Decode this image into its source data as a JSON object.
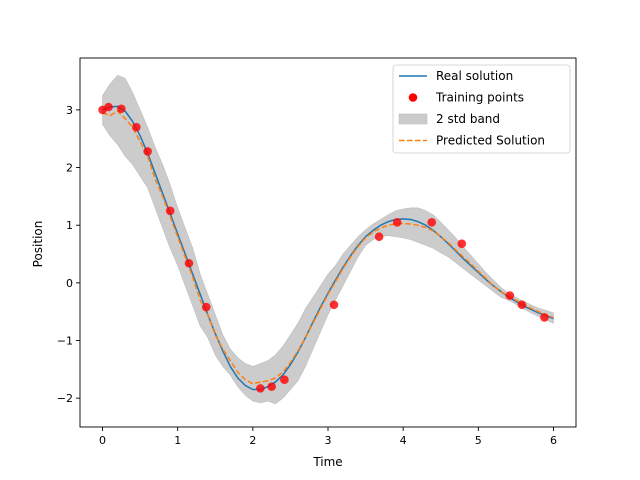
{
  "chart_data": {
    "type": "line",
    "title": "",
    "xlabel": "Time",
    "ylabel": "Position",
    "xlim": [
      -0.3,
      6.3
    ],
    "ylim": [
      -2.5,
      3.9
    ],
    "xticks": [
      0,
      1,
      2,
      3,
      4,
      5,
      6
    ],
    "yticks": [
      -2,
      -1,
      0,
      1,
      2,
      3
    ],
    "xtick_labels": [
      "0",
      "1",
      "2",
      "3",
      "4",
      "5",
      "6"
    ],
    "ytick_labels": [
      "−2",
      "−1",
      "0",
      "1",
      "2",
      "3"
    ],
    "grid": false,
    "legend_position": "top-right",
    "legend": [
      {
        "label": "Real solution",
        "kind": "line",
        "color": "#1f77b4"
      },
      {
        "label": "Training points",
        "kind": "marker",
        "color": "#ff0000"
      },
      {
        "label": "2 std band",
        "kind": "patch",
        "color": "#cccccc"
      },
      {
        "label": "Predicted Solution",
        "kind": "dashed",
        "color": "#ff7f0e"
      }
    ],
    "series": [
      {
        "name": "Real solution",
        "style": "solid",
        "color": "#1f77b4",
        "x": [
          0,
          0.1,
          0.2,
          0.3,
          0.4,
          0.5,
          0.6,
          0.7,
          0.8,
          0.9,
          1.0,
          1.1,
          1.2,
          1.3,
          1.4,
          1.5,
          1.6,
          1.7,
          1.8,
          1.9,
          2.0,
          2.1,
          2.2,
          2.3,
          2.4,
          2.5,
          2.6,
          2.7,
          2.8,
          2.9,
          3.0,
          3.1,
          3.2,
          3.3,
          3.4,
          3.5,
          3.6,
          3.7,
          3.8,
          3.9,
          4.0,
          4.1,
          4.2,
          4.3,
          4.4,
          4.5,
          4.6,
          4.7,
          4.8,
          4.9,
          5.0,
          5.1,
          5.2,
          5.3,
          5.4,
          5.5,
          5.6,
          5.7,
          5.8,
          5.9,
          6.0
        ],
        "y": [
          3.0,
          3.05,
          3.06,
          2.98,
          2.8,
          2.55,
          2.25,
          1.9,
          1.55,
          1.2,
          0.85,
          0.5,
          0.15,
          -0.2,
          -0.55,
          -0.88,
          -1.18,
          -1.45,
          -1.65,
          -1.78,
          -1.85,
          -1.85,
          -1.8,
          -1.72,
          -1.6,
          -1.42,
          -1.2,
          -0.95,
          -0.68,
          -0.42,
          -0.18,
          0.05,
          0.27,
          0.47,
          0.65,
          0.8,
          0.91,
          1.0,
          1.06,
          1.1,
          1.11,
          1.1,
          1.06,
          1.0,
          0.91,
          0.8,
          0.68,
          0.55,
          0.42,
          0.3,
          0.18,
          0.06,
          -0.05,
          -0.15,
          -0.24,
          -0.32,
          -0.4,
          -0.46,
          -0.52,
          -0.57,
          -0.62
        ]
      },
      {
        "name": "Predicted Solution",
        "style": "dashed",
        "color": "#ff7f0e",
        "x": [
          0,
          0.1,
          0.2,
          0.3,
          0.4,
          0.5,
          0.6,
          0.7,
          0.8,
          0.9,
          1.0,
          1.1,
          1.2,
          1.3,
          1.4,
          1.5,
          1.6,
          1.7,
          1.8,
          1.9,
          2.0,
          2.1,
          2.2,
          2.3,
          2.4,
          2.5,
          2.6,
          2.7,
          2.8,
          2.9,
          3.0,
          3.1,
          3.2,
          3.3,
          3.4,
          3.5,
          3.6,
          3.7,
          3.8,
          3.9,
          4.0,
          4.1,
          4.2,
          4.3,
          4.4,
          4.5,
          4.6,
          4.7,
          4.8,
          4.9,
          5.0,
          5.1,
          5.2,
          5.3,
          5.4,
          5.5,
          5.6,
          5.7,
          5.8,
          5.9,
          6.0
        ],
        "y": [
          2.95,
          2.9,
          2.98,
          2.85,
          2.7,
          2.45,
          2.2,
          1.8,
          1.5,
          1.15,
          0.8,
          0.45,
          0.1,
          -0.3,
          -0.55,
          -0.9,
          -1.15,
          -1.35,
          -1.55,
          -1.68,
          -1.75,
          -1.72,
          -1.7,
          -1.65,
          -1.55,
          -1.38,
          -1.18,
          -0.95,
          -0.7,
          -0.45,
          -0.2,
          0.02,
          0.25,
          0.45,
          0.63,
          0.78,
          0.88,
          0.95,
          1.0,
          1.02,
          1.03,
          1.02,
          1.0,
          0.96,
          0.9,
          0.8,
          0.7,
          0.57,
          0.45,
          0.33,
          0.2,
          0.08,
          -0.05,
          -0.15,
          -0.23,
          -0.3,
          -0.37,
          -0.44,
          -0.5,
          -0.56,
          -0.6
        ]
      }
    ],
    "band": {
      "name": "2 std band",
      "color": "#cccccc",
      "x": [
        0,
        0.1,
        0.2,
        0.3,
        0.4,
        0.5,
        0.6,
        0.7,
        0.8,
        0.9,
        1.0,
        1.1,
        1.2,
        1.3,
        1.4,
        1.5,
        1.6,
        1.7,
        1.8,
        1.9,
        2.0,
        2.1,
        2.2,
        2.3,
        2.4,
        2.5,
        2.6,
        2.7,
        2.8,
        2.9,
        3.0,
        3.1,
        3.2,
        3.3,
        3.4,
        3.5,
        3.6,
        3.7,
        3.8,
        3.9,
        4.0,
        4.1,
        4.2,
        4.3,
        4.4,
        4.5,
        4.6,
        4.7,
        4.8,
        4.9,
        5.0,
        5.1,
        5.2,
        5.3,
        5.4,
        5.5,
        5.6,
        5.7,
        5.8,
        5.9,
        6.0
      ],
      "upper": [
        3.25,
        3.45,
        3.6,
        3.55,
        3.3,
        3.0,
        2.7,
        2.35,
        2.05,
        1.7,
        1.3,
        0.95,
        0.6,
        0.15,
        -0.2,
        -0.55,
        -0.9,
        -1.15,
        -1.3,
        -1.4,
        -1.45,
        -1.4,
        -1.35,
        -1.25,
        -1.1,
        -0.9,
        -0.7,
        -0.45,
        -0.25,
        -0.05,
        0.15,
        0.3,
        0.5,
        0.65,
        0.8,
        0.92,
        1.02,
        1.1,
        1.18,
        1.25,
        1.28,
        1.3,
        1.3,
        1.25,
        1.18,
        1.05,
        0.92,
        0.78,
        0.62,
        0.48,
        0.33,
        0.18,
        0.05,
        -0.08,
        -0.18,
        -0.25,
        -0.32,
        -0.38,
        -0.44,
        -0.48,
        -0.52
      ],
      "lower": [
        2.75,
        2.55,
        2.4,
        2.2,
        2.05,
        1.85,
        1.65,
        1.3,
        0.95,
        0.6,
        0.3,
        -0.05,
        -0.4,
        -0.75,
        -0.95,
        -1.25,
        -1.45,
        -1.6,
        -1.8,
        -1.95,
        -2.05,
        -2.08,
        -2.05,
        -2.1,
        -2.0,
        -1.85,
        -1.7,
        -1.45,
        -1.15,
        -0.85,
        -0.55,
        -0.3,
        -0.05,
        0.2,
        0.45,
        0.65,
        0.75,
        0.8,
        0.82,
        0.8,
        0.78,
        0.75,
        0.7,
        0.65,
        0.6,
        0.52,
        0.45,
        0.35,
        0.25,
        0.15,
        0.05,
        -0.05,
        -0.15,
        -0.25,
        -0.3,
        -0.37,
        -0.45,
        -0.52,
        -0.58,
        -0.64,
        -0.7
      ]
    },
    "training_points": {
      "name": "Training points",
      "color": "#ff0000",
      "x": [
        0.0,
        0.08,
        0.25,
        0.45,
        0.6,
        0.9,
        1.15,
        1.38,
        2.1,
        2.25,
        2.42,
        3.08,
        3.68,
        3.92,
        4.38,
        4.78,
        5.42,
        5.58,
        5.88
      ],
      "y": [
        3.0,
        3.05,
        3.02,
        2.7,
        2.28,
        1.25,
        0.34,
        -0.42,
        -1.83,
        -1.8,
        -1.68,
        -0.38,
        0.8,
        1.05,
        1.05,
        0.68,
        -0.22,
        -0.38,
        -0.6
      ]
    }
  }
}
